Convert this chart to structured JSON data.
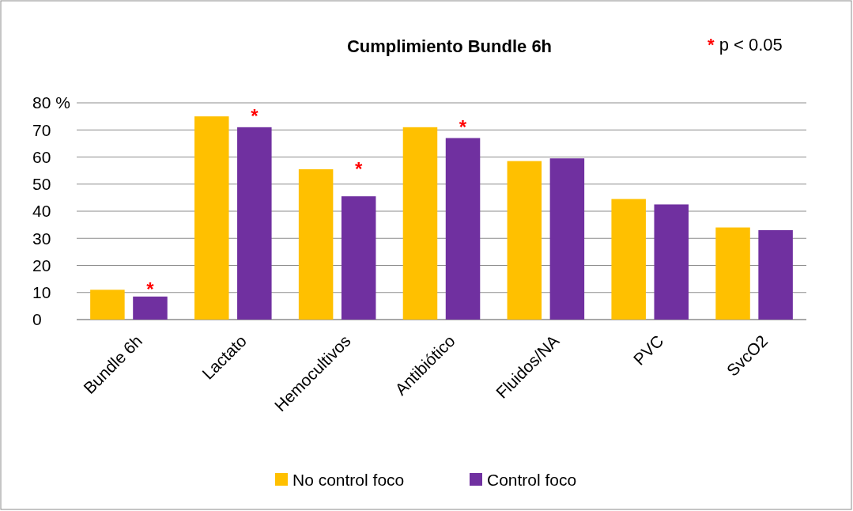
{
  "chart_data": {
    "type": "bar",
    "title": "Cumplimiento Bundle 6h",
    "categories": [
      "Bundle 6h",
      "Lactato",
      "Hemocultivos",
      "Antibiótico",
      "Fluidos/NA",
      "PVC",
      "SvcO2"
    ],
    "series": [
      {
        "name": "No control foco",
        "color": "#ffc000",
        "values": [
          11,
          75,
          55.5,
          71,
          58.5,
          44.5,
          34
        ]
      },
      {
        "name": "Control foco",
        "color": "#7030a0",
        "values": [
          8.5,
          71,
          45.5,
          67,
          59.5,
          42.5,
          33
        ]
      }
    ],
    "ylim": [
      0,
      80
    ],
    "yticks": [
      0,
      10,
      20,
      30,
      40,
      50,
      60,
      70,
      {
        "value": 80,
        "label": "80 %"
      }
    ],
    "grid": "y",
    "legend": "bottom",
    "annotations": [
      {
        "text": "*",
        "x": "Bundle 6h"
      },
      {
        "text": "*",
        "x": "Lactato"
      },
      {
        "text": "*",
        "x": "Hemocultivos"
      },
      {
        "text": "*",
        "x": "Antibiótico"
      },
      "* p < 0.05"
    ]
  }
}
